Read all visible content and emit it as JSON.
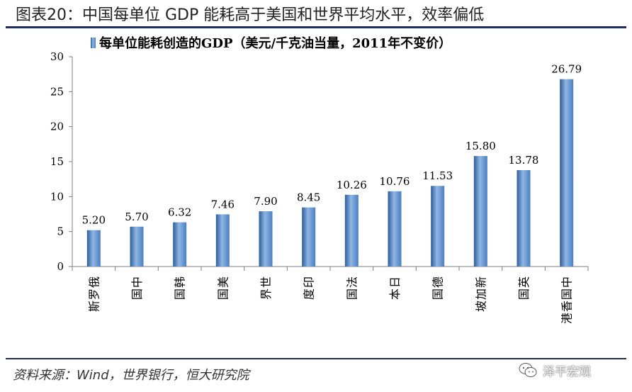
{
  "figure_title": "图表20：中国每单位 GDP 能耗高于美国和世界平均水平，效率偏低",
  "source_note": "资料来源：Wind，世界银行，恒大研究院",
  "watermark_text": "泽平宏观",
  "colors": {
    "bar": "#4a7fc0",
    "bar_dark": "#2d5c9a",
    "bar_light": "#8fb6e4",
    "rule": "#1b2f5a",
    "axis": "#7f7f7f"
  },
  "chart_data": {
    "type": "bar",
    "title": "",
    "xlabel": "",
    "ylabel": "",
    "legend": {
      "position": "top-left",
      "entries": [
        "每单位能耗创造的GDP（美元/千克油当量，2011年不变价）"
      ]
    },
    "categories": [
      "俄罗斯",
      "中国",
      "韩国",
      "美国",
      "世界",
      "印度",
      "法国",
      "日本",
      "德国",
      "新加坡",
      "英国",
      "中国香港"
    ],
    "series": [
      {
        "name": "每单位能耗创造的GDP（美元/千克油当量，2011年不变价）",
        "values": [
          5.2,
          5.7,
          6.32,
          7.46,
          7.9,
          8.45,
          10.26,
          10.76,
          11.53,
          15.8,
          13.78,
          26.79
        ],
        "labels": [
          "5.20",
          "5.70",
          "6.32",
          "7.46",
          "7.90",
          "8.45",
          "10.26",
          "10.76",
          "11.53",
          "15.80",
          "13.78",
          "26.79"
        ]
      }
    ],
    "ylim": [
      0,
      30
    ],
    "yticks": [
      "0",
      "5",
      "10",
      "15",
      "20",
      "25",
      "30"
    ],
    "grid": false
  }
}
